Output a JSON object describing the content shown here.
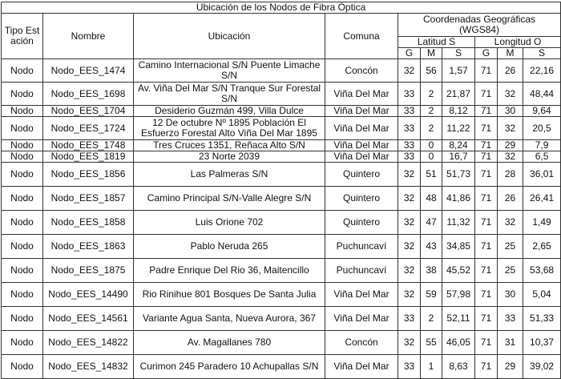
{
  "title": "Ubicación de los Nodos de Fibra Óptica",
  "headers": {
    "tipo": "Tipo Estación",
    "nombre": "Nombre",
    "ubicacion": "Ubicación",
    "comuna": "Comuna",
    "coordenadas": "Coordenadas Geográficas (WGS84)",
    "latitud": "Latitud S",
    "longitud": "Longitud O",
    "g": "G",
    "m": "M",
    "s": "S"
  },
  "rows": [
    [
      "Nodo",
      "Nodo_EES_1474",
      "Camino Internacional S/N Puente Limache S/N",
      "Concón",
      "32",
      "56",
      "1,57",
      "71",
      "26",
      "22,16"
    ],
    [
      "Nodo",
      "Nodo_EES_1698",
      "Av. Viña Del Mar S/N Tranque Sur Forestal S/N",
      "Viña Del Mar",
      "33",
      "2",
      "21,87",
      "71",
      "32",
      "48,44"
    ],
    [
      "Nodo",
      "Nodo_EES_1704",
      "Desiderio Guzmán 499, Villa Dulce",
      "Viña Del Mar",
      "33",
      "2",
      "8,12",
      "71",
      "30",
      "9,64"
    ],
    [
      "Nodo",
      "Nodo_EES_1724",
      "12 De octubre Nº 1895 Población El Esfuerzo Forestal Alto Viña Del Mar 1895",
      "Viña Del Mar",
      "33",
      "2",
      "11,22",
      "71",
      "32",
      "20,5"
    ],
    [
      "Nodo",
      "Nodo_EES_1748",
      "Tres Cruces 1351, Reñaca Alto S/N",
      "Viña Del Mar",
      "33",
      "0",
      "8,24",
      "71",
      "29",
      "7,9"
    ],
    [
      "Nodo",
      "Nodo_EES_1819",
      "23 Norte 2039",
      "Viña Del Mar",
      "33",
      "0",
      "16,7",
      "71",
      "32",
      "6,5"
    ],
    [
      "Nodo",
      "Nodo_EES_1856",
      "Las Palmeras S/N",
      "Quintero",
      "32",
      "51",
      "51,73",
      "71",
      "28",
      "36,01"
    ],
    [
      "Nodo",
      "Nodo_EES_1857",
      "Camino Principal S/N-Valle Alegre S/N",
      "Quintero",
      "32",
      "48",
      "41,86",
      "71",
      "26",
      "26,41"
    ],
    [
      "Nodo",
      "Nodo_EES_1858",
      "Luis Orione 702",
      "Quintero",
      "32",
      "47",
      "11,32",
      "71",
      "32",
      "1,49"
    ],
    [
      "Nodo",
      "Nodo_EES_1863",
      "Pablo Neruda 265",
      "Puchuncaví",
      "32",
      "43",
      "34,85",
      "71",
      "25",
      "2,65"
    ],
    [
      "Nodo",
      "Nodo_EES_1875",
      "Padre Enrique Del Rio 36, Maitencillo",
      "Puchuncaví",
      "32",
      "38",
      "45,52",
      "71",
      "25",
      "53,68"
    ],
    [
      "Nodo",
      "Nodo_EES_14490",
      "Rio Rinihue 801 Bosques De Santa Julia",
      "Viña Del Mar",
      "32",
      "59",
      "57,98",
      "71",
      "30",
      "5,04"
    ],
    [
      "Nodo",
      "Nodo_EES_14561",
      "Variante Agua Santa, Nueva Aurora, 367",
      "Viña Del Mar",
      "33",
      "2",
      "52,11",
      "71",
      "33",
      "51,33"
    ],
    [
      "Nodo",
      "Nodo_EES_14822",
      "Av. Magallanes 780",
      "Concón",
      "32",
      "55",
      "46,05",
      "71",
      "31",
      "10,37"
    ],
    [
      "Nodo",
      "Nodo_EES_14832",
      "Curimon 245 Paradero 10 Achupallas S/N",
      "Viña Del Mar",
      "33",
      "1",
      "8,63",
      "71",
      "29",
      "39,02"
    ]
  ]
}
